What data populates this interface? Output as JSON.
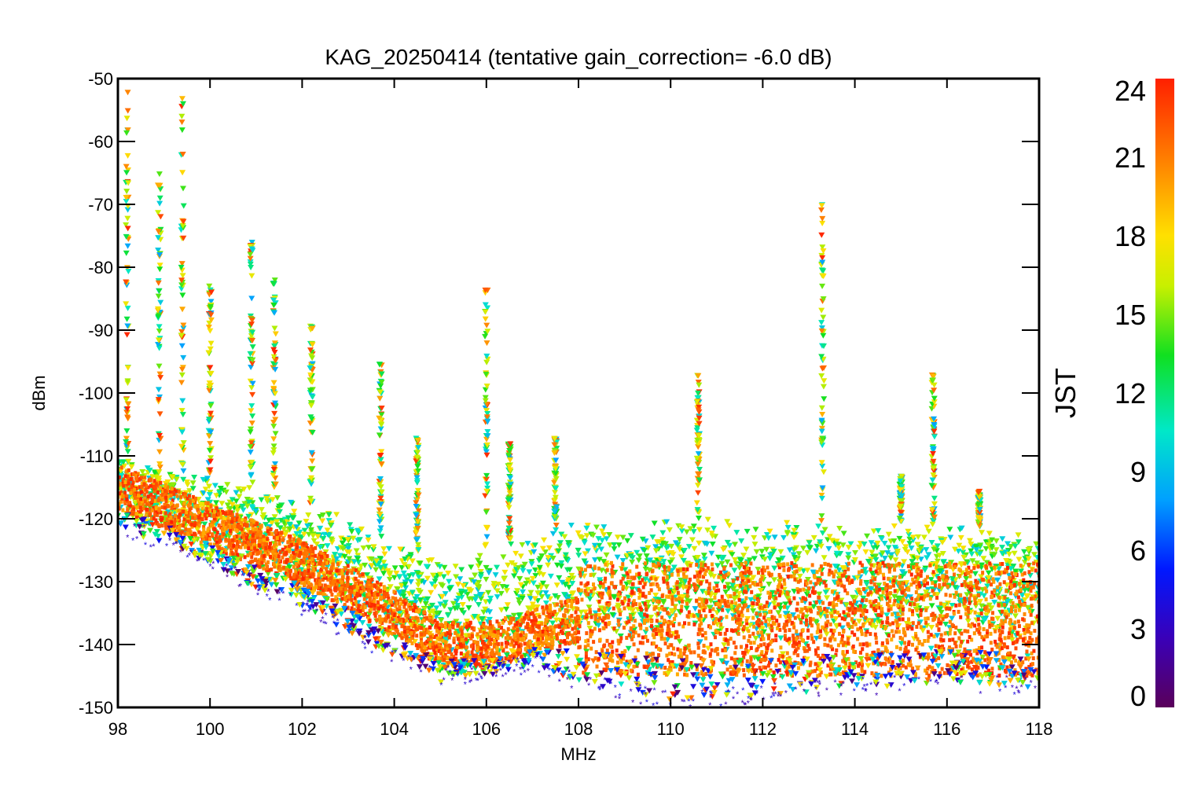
{
  "chart_data": {
    "type": "scatter",
    "title": "KAG_20250414 (tentative gain_correction= -6.0 dB)",
    "xlabel": "MHz",
    "ylabel": "dBm",
    "xlim": [
      98,
      118
    ],
    "ylim": [
      -150,
      -50
    ],
    "xticks": [
      "98",
      "100",
      "102",
      "104",
      "106",
      "108",
      "110",
      "112",
      "114",
      "116",
      "118"
    ],
    "yticks": [
      "-50",
      "-60",
      "-70",
      "-80",
      "-90",
      "-100",
      "-110",
      "-120",
      "-130",
      "-140",
      "-150"
    ],
    "grid": false,
    "colorbar": {
      "label": "JST",
      "range": [
        0,
        24
      ],
      "ticks": [
        "0",
        "3",
        "6",
        "9",
        "12",
        "15",
        "18",
        "21",
        "24"
      ],
      "colormap": [
        "#5a005a",
        "#3a00b8",
        "#0018ff",
        "#00a0ff",
        "#00e8c8",
        "#10e020",
        "#c8f000",
        "#ffe000",
        "#ff8000",
        "#ff2000"
      ]
    },
    "noise_floor_night_dBm": [
      [
        98.0,
        -115
      ],
      [
        99.0,
        -118
      ],
      [
        100.0,
        -121
      ],
      [
        101.0,
        -124
      ],
      [
        102.0,
        -127
      ],
      [
        103.0,
        -131
      ],
      [
        104.0,
        -135
      ],
      [
        105.0,
        -140
      ],
      [
        106.0,
        -140
      ],
      [
        107.0,
        -138
      ],
      [
        108.0,
        -136
      ],
      [
        110.0,
        -136
      ],
      [
        112.0,
        -136
      ],
      [
        114.0,
        -136
      ],
      [
        116.0,
        -136
      ],
      [
        118.0,
        -136
      ]
    ],
    "noise_floor_day_dBm": [
      [
        98.0,
        -110
      ],
      [
        99.0,
        -112
      ],
      [
        100.0,
        -113
      ],
      [
        101.0,
        -114
      ],
      [
        102.0,
        -117
      ],
      [
        103.0,
        -120
      ],
      [
        104.0,
        -124
      ],
      [
        105.0,
        -127
      ],
      [
        106.0,
        -125
      ],
      [
        107.0,
        -122
      ],
      [
        108.0,
        -120
      ],
      [
        110.0,
        -120
      ],
      [
        112.0,
        -120
      ],
      [
        114.0,
        -121
      ],
      [
        116.0,
        -121
      ],
      [
        118.0,
        -122
      ]
    ],
    "deep_night_floor_dBm": [
      [
        98.0,
        -121
      ],
      [
        99.0,
        -124
      ],
      [
        100.0,
        -127
      ],
      [
        101.0,
        -131
      ],
      [
        102.0,
        -134
      ],
      [
        103.0,
        -138
      ],
      [
        104.0,
        -142
      ],
      [
        105.0,
        -145
      ],
      [
        106.0,
        -145
      ],
      [
        107.0,
        -143
      ],
      [
        108.0,
        -146
      ],
      [
        110.0,
        -149
      ],
      [
        112.0,
        -148
      ],
      [
        114.0,
        -147
      ],
      [
        116.0,
        -146
      ],
      [
        118.0,
        -147
      ]
    ],
    "stations": [
      {
        "freq_MHz": 98.2,
        "peak_dBm": -52
      },
      {
        "freq_MHz": 98.9,
        "peak_dBm": -65
      },
      {
        "freq_MHz": 99.4,
        "peak_dBm": -53
      },
      {
        "freq_MHz": 100.0,
        "peak_dBm": -82
      },
      {
        "freq_MHz": 100.9,
        "peak_dBm": -76
      },
      {
        "freq_MHz": 101.4,
        "peak_dBm": -81
      },
      {
        "freq_MHz": 102.2,
        "peak_dBm": -89
      },
      {
        "freq_MHz": 103.7,
        "peak_dBm": -95
      },
      {
        "freq_MHz": 104.5,
        "peak_dBm": -107
      },
      {
        "freq_MHz": 106.0,
        "peak_dBm": -83
      },
      {
        "freq_MHz": 106.5,
        "peak_dBm": -108
      },
      {
        "freq_MHz": 107.5,
        "peak_dBm": -106
      },
      {
        "freq_MHz": 110.6,
        "peak_dBm": -97
      },
      {
        "freq_MHz": 113.3,
        "peak_dBm": -70
      },
      {
        "freq_MHz": 115.0,
        "peak_dBm": -113
      },
      {
        "freq_MHz": 115.7,
        "peak_dBm": -97
      },
      {
        "freq_MHz": 116.7,
        "peak_dBm": -115
      }
    ]
  }
}
